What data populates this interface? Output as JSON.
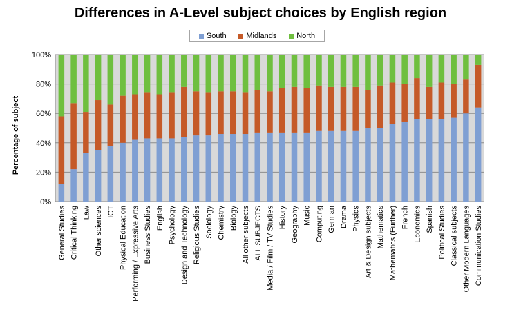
{
  "chart_data": {
    "type": "bar",
    "stacked": true,
    "title": "Differences in A-Level subject choices by English region",
    "xlabel": "",
    "ylabel": "Percentage of subject",
    "ylim": [
      0,
      1
    ],
    "yticks": [
      "0%",
      "20%",
      "40%",
      "60%",
      "80%",
      "100%"
    ],
    "grid": true,
    "legend_position": "top",
    "categories": [
      "General Studies",
      "Critical Thinking",
      "Law",
      "Other sciences",
      "ICT",
      "Physical Education",
      "Performing / Expressive Arts",
      "Business Studies",
      "English",
      "Psychology",
      "Design and Technology",
      "Religious Studies",
      "Sociology",
      "Chemistry",
      "Biology",
      "All other subjects",
      "ALL SUBJECTS",
      "Media / Film / TV Studies",
      "History",
      "Geography",
      "Music",
      "Computing",
      "German",
      "Drama",
      "Physics",
      "Art & Design subjects",
      "Mathematics",
      "Mathematics (Further)",
      "French",
      "Economics",
      "Spanish",
      "Political Studies",
      "Classical subjects",
      "Other Modern Languages",
      "Communication Studies"
    ],
    "series": [
      {
        "name": "South",
        "color": "#7f9fd3",
        "values": [
          0.12,
          0.22,
          0.33,
          0.35,
          0.38,
          0.4,
          0.42,
          0.43,
          0.43,
          0.43,
          0.44,
          0.45,
          0.45,
          0.46,
          0.46,
          0.46,
          0.47,
          0.47,
          0.47,
          0.47,
          0.47,
          0.48,
          0.48,
          0.48,
          0.48,
          0.5,
          0.5,
          0.53,
          0.54,
          0.56,
          0.56,
          0.56,
          0.57,
          0.6,
          0.64
        ]
      },
      {
        "name": "Midlands",
        "color": "#c55a28",
        "values": [
          0.46,
          0.45,
          0.28,
          0.34,
          0.28,
          0.32,
          0.31,
          0.31,
          0.3,
          0.31,
          0.34,
          0.3,
          0.29,
          0.29,
          0.29,
          0.28,
          0.29,
          0.28,
          0.3,
          0.31,
          0.3,
          0.31,
          0.3,
          0.3,
          0.3,
          0.26,
          0.29,
          0.28,
          0.26,
          0.28,
          0.22,
          0.25,
          0.23,
          0.23,
          0.29
        ]
      },
      {
        "name": "North",
        "color": "#6fbf3f",
        "values": [
          0.42,
          0.33,
          0.39,
          0.31,
          0.34,
          0.28,
          0.27,
          0.26,
          0.27,
          0.26,
          0.22,
          0.25,
          0.26,
          0.25,
          0.25,
          0.26,
          0.24,
          0.25,
          0.23,
          0.22,
          0.23,
          0.21,
          0.22,
          0.22,
          0.22,
          0.24,
          0.21,
          0.19,
          0.2,
          0.16,
          0.22,
          0.19,
          0.2,
          0.17,
          0.07
        ]
      }
    ]
  }
}
